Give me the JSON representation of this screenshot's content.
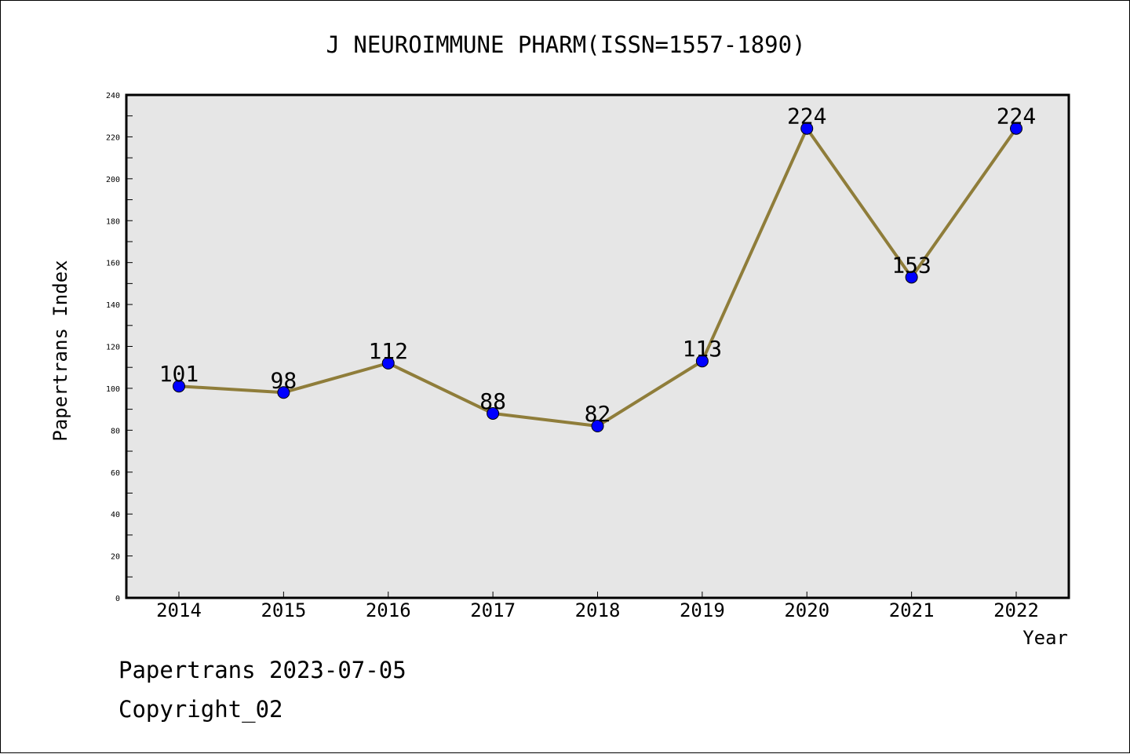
{
  "chart_data": {
    "type": "line",
    "title": "J NEUROIMMUNE PHARM(ISSN=1557-1890)",
    "xlabel": "Year",
    "ylabel": "Papertrans Index",
    "categories": [
      "2014",
      "2015",
      "2016",
      "2017",
      "2018",
      "2019",
      "2020",
      "2021",
      "2022"
    ],
    "series": [
      {
        "values": [
          101,
          98,
          112,
          88,
          82,
          113,
          224,
          153,
          224
        ]
      }
    ],
    "data_labels": [
      "101",
      "98",
      "112",
      "88",
      "82",
      "113",
      "224",
      "153",
      "224"
    ],
    "ylim": [
      0,
      240
    ],
    "y_ticks": [
      "0",
      "20",
      "40",
      "60",
      "80",
      "100",
      "120",
      "140",
      "160",
      "180",
      "200",
      "220",
      "240"
    ],
    "grid": false,
    "legend": "none",
    "colors": {
      "line": "#8f7d3a",
      "marker": "#0000ff",
      "plot_background": "#e6e6e6",
      "frame": "#000000"
    }
  },
  "footer": {
    "line1": "Papertrans 2023-07-05",
    "line2": "Copyright_02"
  }
}
